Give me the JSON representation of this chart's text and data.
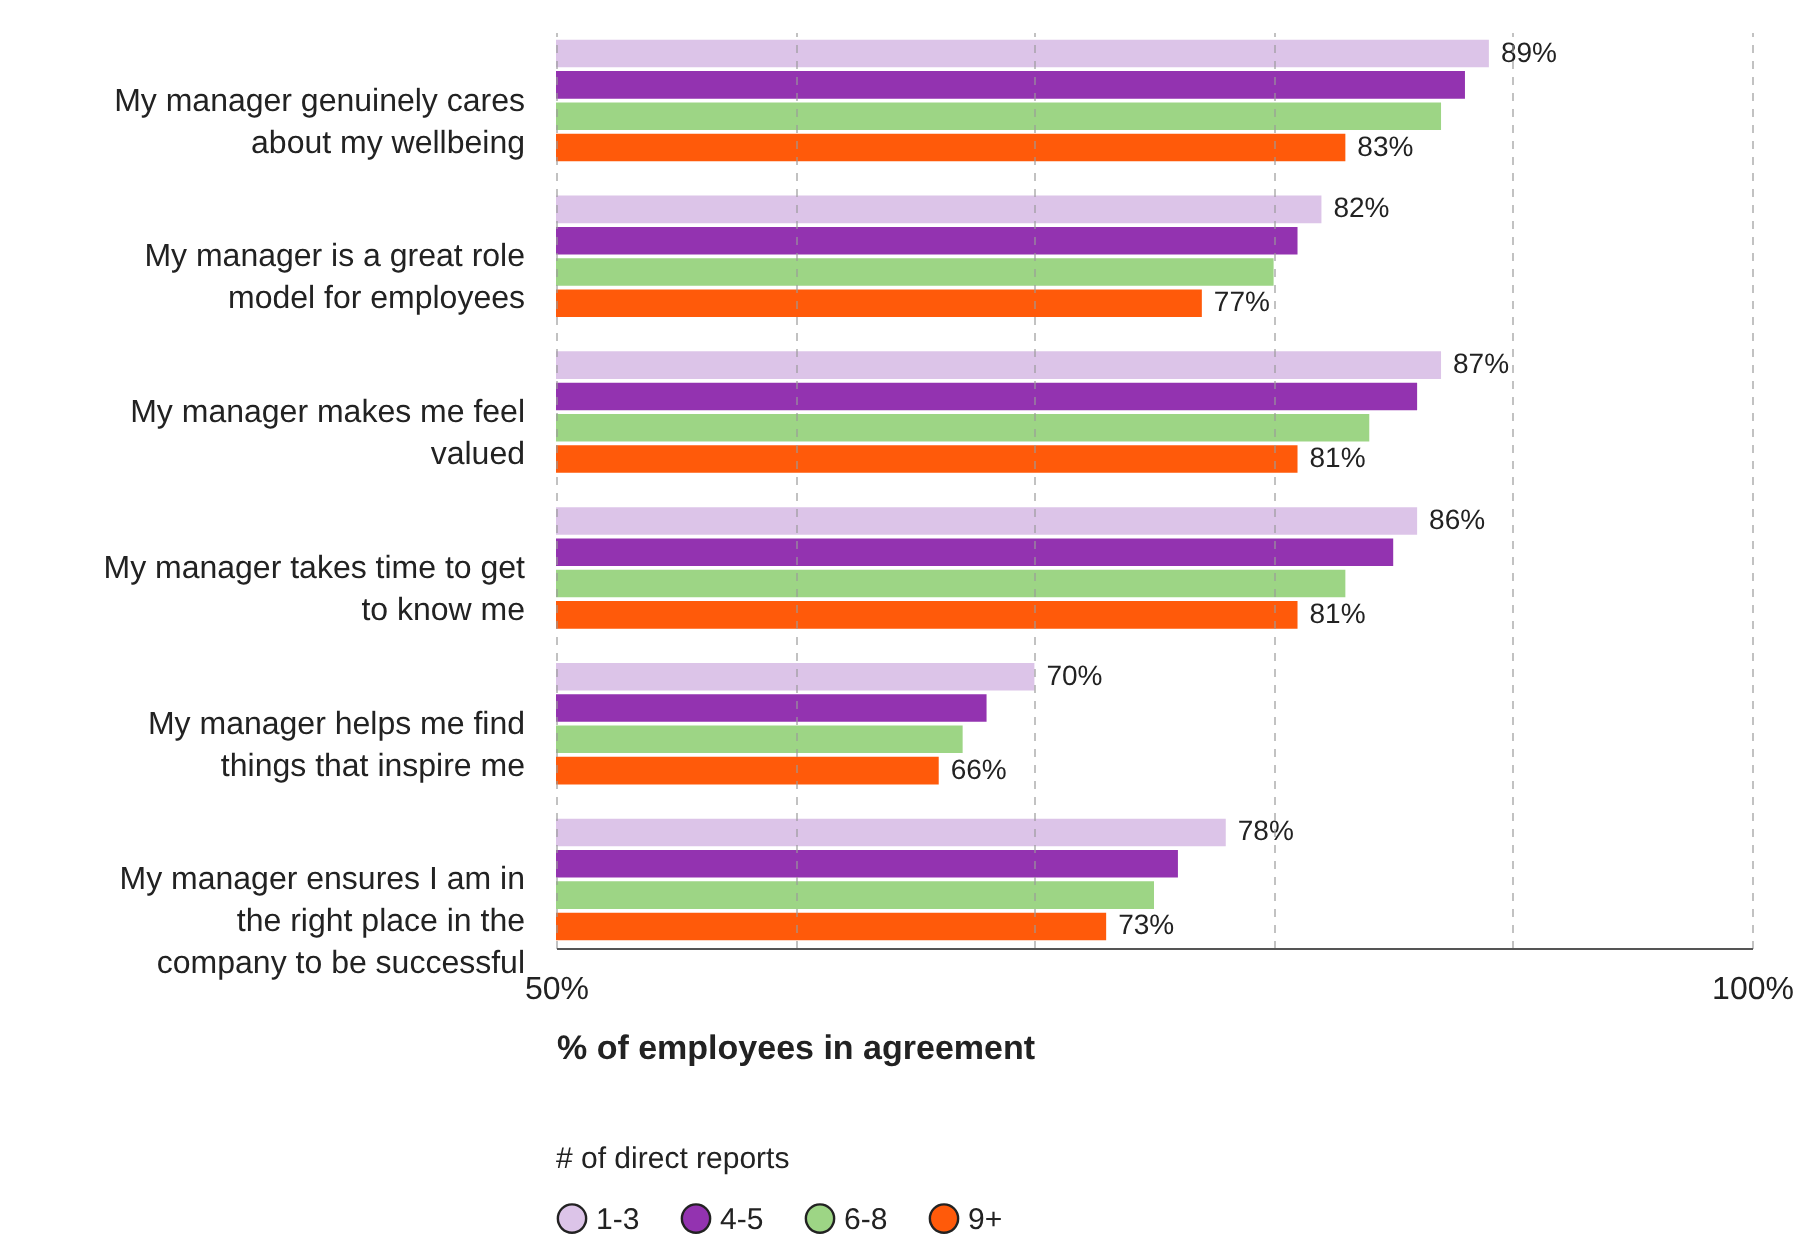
{
  "chart_data": {
    "type": "bar",
    "orientation": "horizontal",
    "categories": [
      "My manager genuinely cares about my wellbeing",
      "My manager is a great role model for employees",
      "My manager makes me feel valued",
      "My manager takes time to get to know me",
      "My manager helps me find things that inspire me",
      "My manager ensures I am in the right place in the company to be successful"
    ],
    "series": [
      {
        "name": "1-3",
        "color": "#dcc4e8",
        "values": [
          89,
          82,
          87,
          86,
          70,
          78
        ],
        "value_labels": [
          "89%",
          "82%",
          "87%",
          "86%",
          "70%",
          "78%"
        ]
      },
      {
        "name": "4-5",
        "color": "#9333b0",
        "values": [
          88,
          81,
          86,
          85,
          68,
          76
        ]
      },
      {
        "name": "6-8",
        "color": "#9dd585",
        "values": [
          87,
          80,
          84,
          83,
          67,
          75
        ]
      },
      {
        "name": "9+",
        "color": "#ff5a0a",
        "values": [
          83,
          77,
          81,
          81,
          66,
          73
        ],
        "value_labels": [
          "83%",
          "77%",
          "81%",
          "81%",
          "66%",
          "73%"
        ]
      }
    ],
    "xlim": [
      50,
      100
    ],
    "xticks": [
      {
        "value": 50,
        "label": "50%"
      },
      {
        "value": 60,
        "label": null
      },
      {
        "value": 70,
        "label": null
      },
      {
        "value": 80,
        "label": null
      },
      {
        "value": 90,
        "label": null
      },
      {
        "value": 100,
        "label": "100%"
      }
    ],
    "xlabel": "% of employees in agreement",
    "legend_title": "# of direct reports",
    "legend": "bottom",
    "grid": "x"
  }
}
